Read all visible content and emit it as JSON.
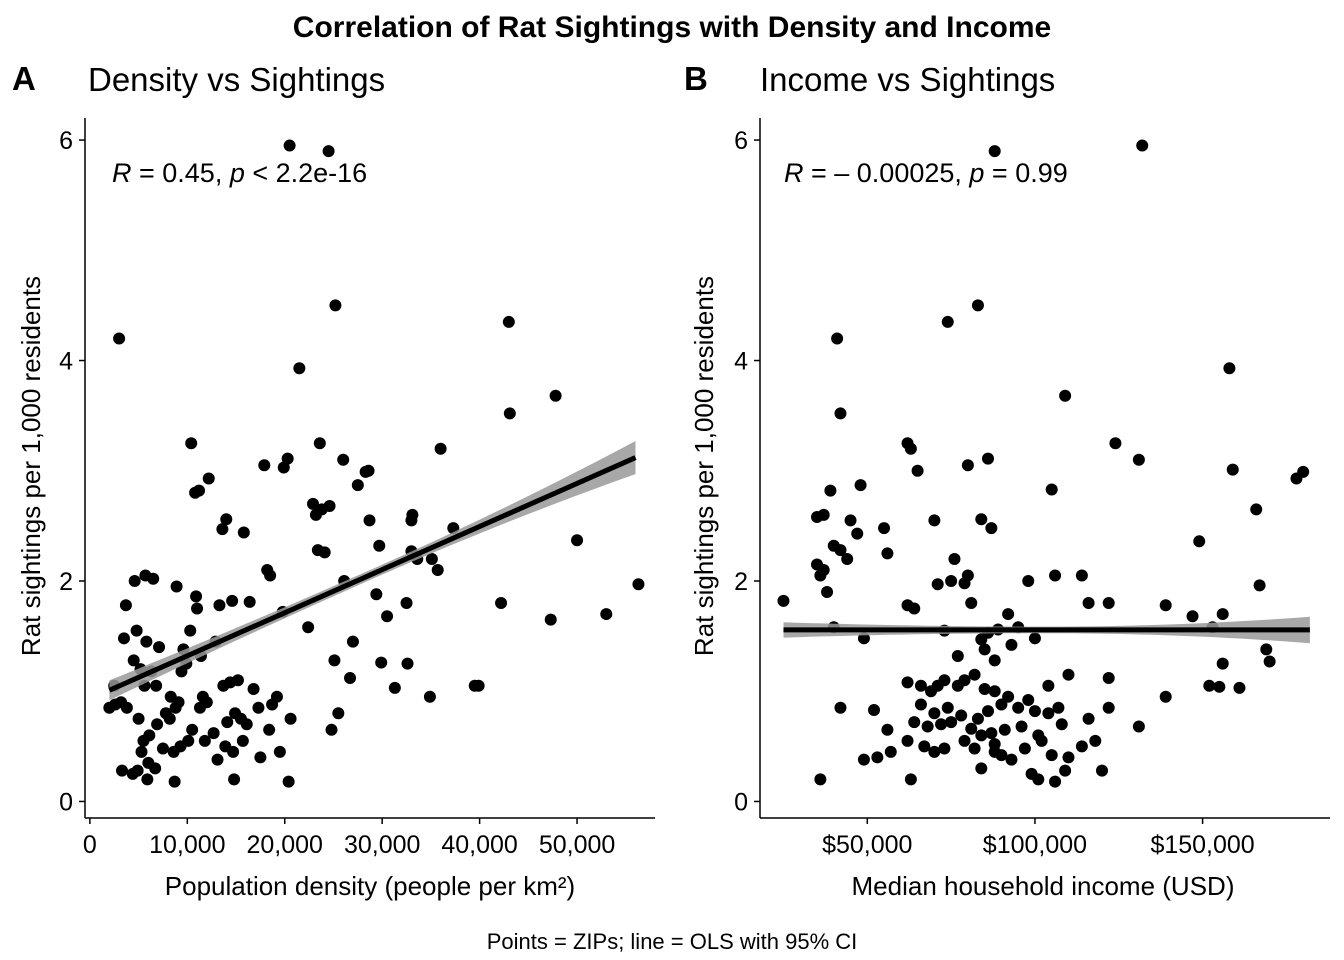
{
  "figure": {
    "title": "Correlation of Rat Sightings with Density and Income",
    "caption": "Points = ZIPs; line = OLS with 95% CI"
  },
  "chart_data": [
    {
      "type": "scatter",
      "tag": "A",
      "subtitle": "Density vs Sightings",
      "xlabel": "Population density (people per km²)",
      "ylabel": "Rat sightings per 1,000 residents",
      "x_ticks": [
        "0",
        "10,000",
        "20,000",
        "30,000",
        "40,000",
        "50,000"
      ],
      "y_ticks": [
        "0",
        "2",
        "4",
        "6"
      ],
      "xlim": [
        -500,
        58000
      ],
      "ylim": [
        -0.15,
        6.2
      ],
      "stat_r_label": "R",
      "stat_r_value": " = 0.45, ",
      "stat_p_label": "p",
      "stat_p_value": " < 2.2e-16",
      "fit": {
        "intercept": 0.93,
        "slope": 3.91e-05,
        "x_range": [
          2000,
          56000
        ],
        "ci_at_min": 0.09,
        "ci_at_center": 0.045,
        "ci_at_max": 0.15
      },
      "points": [
        [
          3000,
          4.2
        ],
        [
          20500,
          5.95
        ],
        [
          24500,
          5.9
        ],
        [
          25200,
          4.5
        ],
        [
          43000,
          4.35
        ],
        [
          21500,
          3.93
        ],
        [
          43100,
          3.52
        ],
        [
          47800,
          3.68
        ],
        [
          10400,
          3.25
        ],
        [
          23600,
          3.25
        ],
        [
          12200,
          2.93
        ],
        [
          20300,
          3.11
        ],
        [
          19900,
          3.03
        ],
        [
          17900,
          3.05
        ],
        [
          26000,
          3.1
        ],
        [
          28600,
          3.0
        ],
        [
          27500,
          2.87
        ],
        [
          28300,
          2.99
        ],
        [
          10800,
          2.8
        ],
        [
          11200,
          2.82
        ],
        [
          23200,
          2.6
        ],
        [
          23800,
          2.65
        ],
        [
          24600,
          2.68
        ],
        [
          22900,
          2.7
        ],
        [
          14000,
          2.56
        ],
        [
          13600,
          2.47
        ],
        [
          15800,
          2.44
        ],
        [
          28700,
          2.55
        ],
        [
          33000,
          2.55
        ],
        [
          33100,
          2.6
        ],
        [
          37300,
          2.48
        ],
        [
          23400,
          2.28
        ],
        [
          24100,
          2.26
        ],
        [
          29700,
          2.32
        ],
        [
          18200,
          2.1
        ],
        [
          18500,
          2.05
        ],
        [
          33600,
          2.2
        ],
        [
          35100,
          2.2
        ],
        [
          35700,
          2.1
        ],
        [
          36000,
          3.2
        ],
        [
          50000,
          2.37
        ],
        [
          3700,
          1.78
        ],
        [
          4600,
          2.0
        ],
        [
          5700,
          2.05
        ],
        [
          6500,
          2.02
        ],
        [
          8900,
          1.95
        ],
        [
          10900,
          1.86
        ],
        [
          11000,
          1.75
        ],
        [
          13300,
          1.78
        ],
        [
          14600,
          1.82
        ],
        [
          16400,
          1.81
        ],
        [
          19800,
          1.72
        ],
        [
          26100,
          2.0
        ],
        [
          29400,
          1.88
        ],
        [
          30500,
          1.68
        ],
        [
          32500,
          1.8
        ],
        [
          33000,
          2.27
        ],
        [
          42200,
          1.8
        ],
        [
          47300,
          1.65
        ],
        [
          53000,
          1.7
        ],
        [
          56300,
          1.97
        ],
        [
          3500,
          1.48
        ],
        [
          4800,
          1.55
        ],
        [
          5800,
          1.45
        ],
        [
          7100,
          1.4
        ],
        [
          9600,
          1.38
        ],
        [
          10300,
          1.55
        ],
        [
          11400,
          1.32
        ],
        [
          12900,
          1.45
        ],
        [
          22400,
          1.58
        ],
        [
          25100,
          1.28
        ],
        [
          27000,
          1.45
        ],
        [
          29900,
          1.26
        ],
        [
          32600,
          1.25
        ],
        [
          31300,
          1.03
        ],
        [
          34900,
          0.95
        ],
        [
          39500,
          1.05
        ],
        [
          39900,
          1.05
        ],
        [
          2000,
          0.85
        ],
        [
          2500,
          1.05
        ],
        [
          3200,
          0.9
        ],
        [
          3800,
          0.85
        ],
        [
          4500,
          1.28
        ],
        [
          5200,
          1.2
        ],
        [
          5600,
          1.05
        ],
        [
          6300,
          1.18
        ],
        [
          6800,
          1.05
        ],
        [
          8300,
          0.95
        ],
        [
          8800,
          0.85
        ],
        [
          9400,
          1.18
        ],
        [
          9900,
          1.25
        ],
        [
          11600,
          0.95
        ],
        [
          12000,
          0.9
        ],
        [
          13700,
          1.05
        ],
        [
          14400,
          1.08
        ],
        [
          15200,
          1.1
        ],
        [
          16800,
          1.02
        ],
        [
          18700,
          0.88
        ],
        [
          19200,
          0.95
        ],
        [
          26700,
          1.12
        ],
        [
          2600,
          0.88
        ],
        [
          5000,
          0.75
        ],
        [
          5500,
          0.55
        ],
        [
          6100,
          0.6
        ],
        [
          6900,
          0.7
        ],
        [
          7800,
          0.8
        ],
        [
          8200,
          0.75
        ],
        [
          9100,
          0.9
        ],
        [
          10500,
          0.65
        ],
        [
          11800,
          0.55
        ],
        [
          12700,
          0.62
        ],
        [
          13100,
          0.38
        ],
        [
          14100,
          0.72
        ],
        [
          14900,
          0.8
        ],
        [
          15500,
          0.75
        ],
        [
          16100,
          0.7
        ],
        [
          17300,
          0.85
        ],
        [
          18400,
          0.65
        ],
        [
          20600,
          0.75
        ],
        [
          24800,
          0.65
        ],
        [
          25500,
          0.8
        ],
        [
          4900,
          0.28
        ],
        [
          5300,
          0.45
        ],
        [
          6000,
          0.35
        ],
        [
          6700,
          0.3
        ],
        [
          7500,
          0.48
        ],
        [
          8600,
          0.45
        ],
        [
          9300,
          0.5
        ],
        [
          10100,
          0.55
        ],
        [
          11300,
          0.85
        ],
        [
          13900,
          0.5
        ],
        [
          14700,
          0.45
        ],
        [
          15700,
          0.55
        ],
        [
          17500,
          0.4
        ],
        [
          19500,
          0.45
        ],
        [
          3300,
          0.28
        ],
        [
          4400,
          0.25
        ],
        [
          5900,
          0.2
        ],
        [
          8700,
          0.18
        ],
        [
          14800,
          0.2
        ],
        [
          20400,
          0.18
        ]
      ]
    },
    {
      "type": "scatter",
      "tag": "B",
      "subtitle": "Income vs Sightings",
      "xlabel": "Median household income (USD)",
      "ylabel": "Rat sightings per 1,000 residents",
      "x_ticks": [
        "$50,000",
        "$100,000",
        "$150,000"
      ],
      "x_tick_values": [
        50000,
        100000,
        150000
      ],
      "y_ticks": [
        "0",
        "2",
        "4",
        "6"
      ],
      "xlim": [
        18000,
        188000
      ],
      "ylim": [
        -0.15,
        6.2
      ],
      "stat_r_label": "R",
      "stat_r_value": " = – 0.00025, ",
      "stat_p_label": "p",
      "stat_p_value": " = 0.99",
      "fit": {
        "intercept": 1.556,
        "slope": 0.0,
        "x_range": [
          25000,
          182000
        ],
        "ci_at_min": 0.07,
        "ci_at_center": 0.03,
        "ci_at_max": 0.12
      },
      "points": [
        [
          88000,
          5.9
        ],
        [
          132000,
          5.95
        ],
        [
          83000,
          4.5
        ],
        [
          41000,
          4.2
        ],
        [
          74000,
          4.35
        ],
        [
          42000,
          3.52
        ],
        [
          158000,
          3.93
        ],
        [
          109000,
          3.68
        ],
        [
          62000,
          3.25
        ],
        [
          63000,
          3.2
        ],
        [
          124000,
          3.25
        ],
        [
          131000,
          3.1
        ],
        [
          65000,
          3.0
        ],
        [
          80000,
          3.05
        ],
        [
          86000,
          3.11
        ],
        [
          159000,
          3.01
        ],
        [
          178000,
          2.93
        ],
        [
          180000,
          2.99
        ],
        [
          48000,
          2.87
        ],
        [
          39000,
          2.82
        ],
        [
          105000,
          2.83
        ],
        [
          37000,
          2.6
        ],
        [
          35000,
          2.58
        ],
        [
          45000,
          2.55
        ],
        [
          55000,
          2.48
        ],
        [
          70000,
          2.55
        ],
        [
          84000,
          2.56
        ],
        [
          87000,
          2.48
        ],
        [
          166000,
          2.65
        ],
        [
          40000,
          2.32
        ],
        [
          42000,
          2.28
        ],
        [
          44000,
          2.2
        ],
        [
          47000,
          2.43
        ],
        [
          56000,
          2.25
        ],
        [
          76000,
          2.2
        ],
        [
          149000,
          2.36
        ],
        [
          35000,
          2.15
        ],
        [
          36000,
          2.05
        ],
        [
          37000,
          2.1
        ],
        [
          38000,
          1.9
        ],
        [
          71000,
          1.97
        ],
        [
          75000,
          2.0
        ],
        [
          79000,
          1.98
        ],
        [
          80000,
          2.05
        ],
        [
          98000,
          2.0
        ],
        [
          106000,
          2.05
        ],
        [
          114000,
          2.05
        ],
        [
          167000,
          1.96
        ],
        [
          25000,
          1.82
        ],
        [
          40000,
          1.58
        ],
        [
          49000,
          1.48
        ],
        [
          62000,
          1.78
        ],
        [
          64000,
          1.75
        ],
        [
          81000,
          1.8
        ],
        [
          92000,
          1.7
        ],
        [
          116000,
          1.8
        ],
        [
          122000,
          1.8
        ],
        [
          139000,
          1.78
        ],
        [
          147000,
          1.68
        ],
        [
          156000,
          1.7
        ],
        [
          169000,
          1.38
        ],
        [
          73000,
          1.55
        ],
        [
          84000,
          1.47
        ],
        [
          86000,
          1.53
        ],
        [
          89000,
          1.56
        ],
        [
          95000,
          1.58
        ],
        [
          100000,
          1.48
        ],
        [
          153000,
          1.58
        ],
        [
          77000,
          1.32
        ],
        [
          85000,
          1.38
        ],
        [
          88000,
          1.28
        ],
        [
          93000,
          1.42
        ],
        [
          170000,
          1.27
        ],
        [
          156000,
          1.25
        ],
        [
          62000,
          1.08
        ],
        [
          66000,
          1.05
        ],
        [
          69000,
          1.0
        ],
        [
          71000,
          1.05
        ],
        [
          73000,
          1.1
        ],
        [
          77000,
          1.05
        ],
        [
          79000,
          1.1
        ],
        [
          82000,
          1.15
        ],
        [
          85000,
          1.02
        ],
        [
          88000,
          1.0
        ],
        [
          92000,
          0.95
        ],
        [
          98000,
          0.92
        ],
        [
          104000,
          1.05
        ],
        [
          110000,
          1.15
        ],
        [
          122000,
          1.12
        ],
        [
          139000,
          0.95
        ],
        [
          152000,
          1.05
        ],
        [
          155000,
          1.04
        ],
        [
          161000,
          1.03
        ],
        [
          42000,
          0.85
        ],
        [
          52000,
          0.83
        ],
        [
          66000,
          0.88
        ],
        [
          70000,
          0.8
        ],
        [
          74000,
          0.85
        ],
        [
          78000,
          0.78
        ],
        [
          83000,
          0.75
        ],
        [
          86000,
          0.82
        ],
        [
          90000,
          0.88
        ],
        [
          95000,
          0.85
        ],
        [
          100000,
          0.82
        ],
        [
          104000,
          0.8
        ],
        [
          107000,
          0.85
        ],
        [
          122000,
          0.85
        ],
        [
          56000,
          0.65
        ],
        [
          64000,
          0.72
        ],
        [
          68000,
          0.68
        ],
        [
          72000,
          0.7
        ],
        [
          75000,
          0.72
        ],
        [
          81000,
          0.66
        ],
        [
          84000,
          0.6
        ],
        [
          87000,
          0.62
        ],
        [
          91000,
          0.65
        ],
        [
          96000,
          0.68
        ],
        [
          101000,
          0.6
        ],
        [
          108000,
          0.7
        ],
        [
          116000,
          0.75
        ],
        [
          131000,
          0.68
        ],
        [
          53000,
          0.4
        ],
        [
          57000,
          0.45
        ],
        [
          62000,
          0.55
        ],
        [
          67000,
          0.5
        ],
        [
          70000,
          0.45
        ],
        [
          73000,
          0.48
        ],
        [
          79000,
          0.55
        ],
        [
          82000,
          0.48
        ],
        [
          88000,
          0.52
        ],
        [
          90000,
          0.42
        ],
        [
          93000,
          0.38
        ],
        [
          97000,
          0.48
        ],
        [
          102000,
          0.55
        ],
        [
          105000,
          0.42
        ],
        [
          110000,
          0.4
        ],
        [
          114000,
          0.5
        ],
        [
          118000,
          0.55
        ],
        [
          120000,
          0.28
        ],
        [
          49000,
          0.38
        ],
        [
          84000,
          0.3
        ],
        [
          88000,
          0.45
        ],
        [
          99000,
          0.25
        ],
        [
          101000,
          0.2
        ],
        [
          106000,
          0.18
        ],
        [
          109000,
          0.28
        ],
        [
          36000,
          0.2
        ],
        [
          63000,
          0.2
        ]
      ]
    }
  ]
}
